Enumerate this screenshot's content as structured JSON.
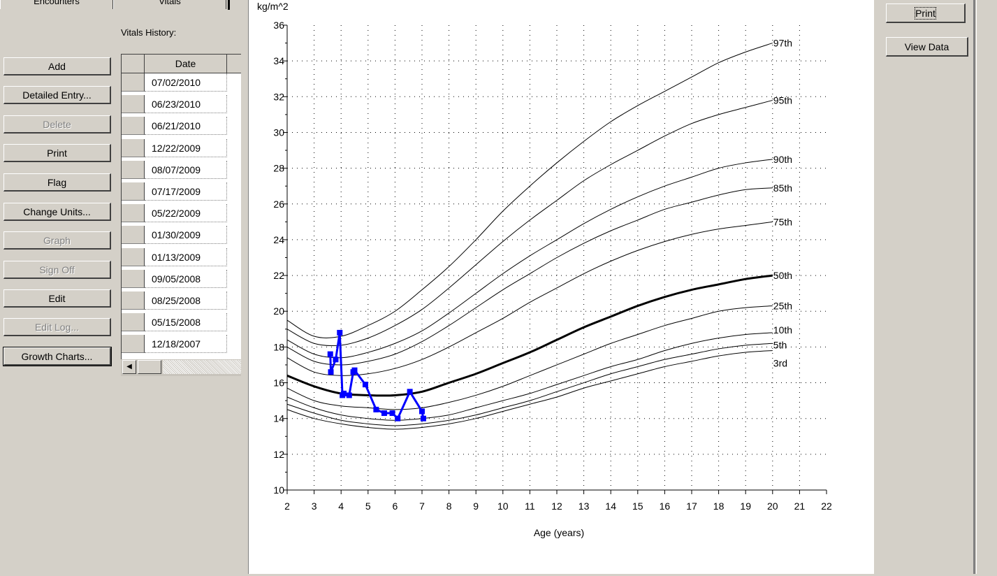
{
  "tabs": {
    "encounters": "Encounters",
    "vitals": "Vitals"
  },
  "vitals_history_label": "Vitals History:",
  "buttons": [
    {
      "label": "Add",
      "state": "enabled"
    },
    {
      "label": "Detailed Entry...",
      "state": "enabled"
    },
    {
      "label": "Delete",
      "state": "disabled"
    },
    {
      "label": "Print",
      "state": "enabled"
    },
    {
      "label": "Flag",
      "state": "enabled"
    },
    {
      "label": "Change Units...",
      "state": "enabled"
    },
    {
      "label": "Graph",
      "state": "disabled"
    },
    {
      "label": "Sign Off",
      "state": "disabled"
    },
    {
      "label": "Edit",
      "state": "enabled"
    },
    {
      "label": "Edit Log...",
      "state": "disabled"
    },
    {
      "label": "Growth Charts...",
      "state": "focused"
    }
  ],
  "grid": {
    "header_date": "Date",
    "dates": [
      "07/02/2010",
      "06/23/2010",
      "06/21/2010",
      "12/22/2009",
      "08/07/2009",
      "07/17/2009",
      "05/22/2009",
      "01/30/2009",
      "01/13/2009",
      "09/05/2008",
      "08/25/2008",
      "05/15/2008",
      "12/18/2007"
    ]
  },
  "right_buttons": {
    "print": "Print",
    "view_data": "View Data"
  },
  "colors": {
    "patient_series": "#0000ff",
    "percentile_curve": "#000000",
    "chrome": "#d4d0c8"
  },
  "chart_data": {
    "type": "line",
    "ylabel": "kg/m^2",
    "xlabel": "Age (years)",
    "xlim": [
      2,
      22
    ],
    "ylim": [
      10,
      36
    ],
    "x_ticks": [
      2,
      3,
      4,
      5,
      6,
      7,
      8,
      9,
      10,
      11,
      12,
      13,
      14,
      15,
      16,
      17,
      18,
      19,
      20,
      21,
      22
    ],
    "y_ticks": [
      10,
      12,
      14,
      16,
      18,
      20,
      22,
      24,
      26,
      28,
      30,
      32,
      34,
      36
    ],
    "grid": true,
    "percentiles": [
      {
        "name": "97th",
        "x": [
          2,
          3,
          4,
          5,
          6,
          7,
          8,
          9,
          10,
          11,
          12,
          13,
          14,
          15,
          16,
          17,
          18,
          19,
          20
        ],
        "values": [
          19.5,
          18.6,
          18.6,
          19.2,
          20.0,
          21.2,
          22.5,
          24.0,
          25.6,
          27.0,
          28.3,
          29.5,
          30.6,
          31.5,
          32.3,
          33.1,
          33.9,
          34.5,
          35.0
        ]
      },
      {
        "name": "95th",
        "x": [
          2,
          3,
          4,
          5,
          6,
          7,
          8,
          9,
          10,
          11,
          12,
          13,
          14,
          15,
          16,
          17,
          18,
          19,
          20
        ],
        "values": [
          19.0,
          18.2,
          18.1,
          18.5,
          19.2,
          20.1,
          21.3,
          22.6,
          23.9,
          25.1,
          26.2,
          27.3,
          28.2,
          29.0,
          29.8,
          30.5,
          31.0,
          31.4,
          31.8
        ]
      },
      {
        "name": "90th",
        "x": [
          2,
          3,
          4,
          5,
          6,
          7,
          8,
          9,
          10,
          11,
          12,
          13,
          14,
          15,
          16,
          17,
          18,
          19,
          20
        ],
        "values": [
          18.4,
          17.6,
          17.4,
          17.7,
          18.2,
          18.9,
          19.9,
          21.0,
          22.1,
          23.1,
          24.0,
          24.9,
          25.7,
          26.4,
          27.0,
          27.5,
          28.0,
          28.3,
          28.5
        ]
      },
      {
        "name": "85th",
        "x": [
          2,
          3,
          4,
          5,
          6,
          7,
          8,
          9,
          10,
          11,
          12,
          13,
          14,
          15,
          16,
          17,
          18,
          19,
          20
        ],
        "values": [
          18.0,
          17.2,
          17.0,
          17.2,
          17.6,
          18.3,
          19.2,
          20.2,
          21.2,
          22.1,
          23.0,
          23.8,
          24.5,
          25.1,
          25.7,
          26.1,
          26.5,
          26.8,
          26.9
        ]
      },
      {
        "name": "75th",
        "x": [
          2,
          3,
          4,
          5,
          6,
          7,
          8,
          9,
          10,
          11,
          12,
          13,
          14,
          15,
          16,
          17,
          18,
          19,
          20
        ],
        "values": [
          17.4,
          16.6,
          16.4,
          16.5,
          16.8,
          17.3,
          18.0,
          18.8,
          19.6,
          20.5,
          21.3,
          22.1,
          22.8,
          23.4,
          23.9,
          24.3,
          24.6,
          24.8,
          25.0
        ]
      },
      {
        "name": "50th",
        "x": [
          2,
          3,
          4,
          5,
          6,
          7,
          8,
          9,
          10,
          11,
          12,
          13,
          14,
          15,
          16,
          17,
          18,
          19,
          20
        ],
        "values": [
          16.4,
          15.8,
          15.4,
          15.3,
          15.3,
          15.5,
          16.0,
          16.5,
          17.1,
          17.7,
          18.4,
          19.1,
          19.7,
          20.3,
          20.8,
          21.2,
          21.5,
          21.8,
          22.0
        ]
      },
      {
        "name": "25th",
        "x": [
          2,
          3,
          4,
          5,
          6,
          7,
          8,
          9,
          10,
          11,
          12,
          13,
          14,
          15,
          16,
          17,
          18,
          19,
          20
        ],
        "values": [
          15.7,
          15.0,
          14.7,
          14.6,
          14.5,
          14.6,
          14.9,
          15.3,
          15.8,
          16.4,
          17.0,
          17.6,
          18.2,
          18.7,
          19.2,
          19.6,
          20.0,
          20.2,
          20.3
        ]
      },
      {
        "name": "10th",
        "x": [
          2,
          3,
          4,
          5,
          6,
          7,
          8,
          9,
          10,
          11,
          12,
          13,
          14,
          15,
          16,
          17,
          18,
          19,
          20
        ],
        "values": [
          15.2,
          14.6,
          14.2,
          14.0,
          13.9,
          14.0,
          14.2,
          14.6,
          15.0,
          15.4,
          15.9,
          16.4,
          16.9,
          17.3,
          17.8,
          18.2,
          18.5,
          18.7,
          18.8
        ]
      },
      {
        "name": "5th",
        "x": [
          2,
          3,
          4,
          5,
          6,
          7,
          8,
          9,
          10,
          11,
          12,
          13,
          14,
          15,
          16,
          17,
          18,
          19,
          20
        ],
        "values": [
          14.8,
          14.3,
          13.9,
          13.7,
          13.6,
          13.7,
          13.9,
          14.2,
          14.6,
          15.0,
          15.5,
          16.0,
          16.5,
          16.9,
          17.3,
          17.6,
          17.9,
          18.1,
          18.2
        ]
      },
      {
        "name": "3rd",
        "x": [
          2,
          3,
          4,
          5,
          6,
          7,
          8,
          9,
          10,
          11,
          12,
          13,
          14,
          15,
          16,
          17,
          18,
          19,
          20
        ],
        "values": [
          14.5,
          14.0,
          13.7,
          13.5,
          13.4,
          13.5,
          13.7,
          14.0,
          14.4,
          14.8,
          15.2,
          15.7,
          16.1,
          16.5,
          16.9,
          17.2,
          17.5,
          17.7,
          17.8
        ]
      }
    ],
    "patient": {
      "x": [
        3.6,
        3.62,
        3.8,
        3.95,
        4.05,
        4.1,
        4.3,
        4.45,
        4.5,
        4.9,
        5.3,
        5.6,
        5.9,
        6.1,
        6.55,
        7.0,
        7.05
      ],
      "values": [
        17.6,
        16.6,
        17.3,
        18.8,
        15.3,
        15.4,
        15.3,
        16.6,
        16.7,
        15.9,
        14.5,
        14.3,
        14.3,
        14.0,
        15.5,
        14.4,
        14.0
      ]
    }
  }
}
